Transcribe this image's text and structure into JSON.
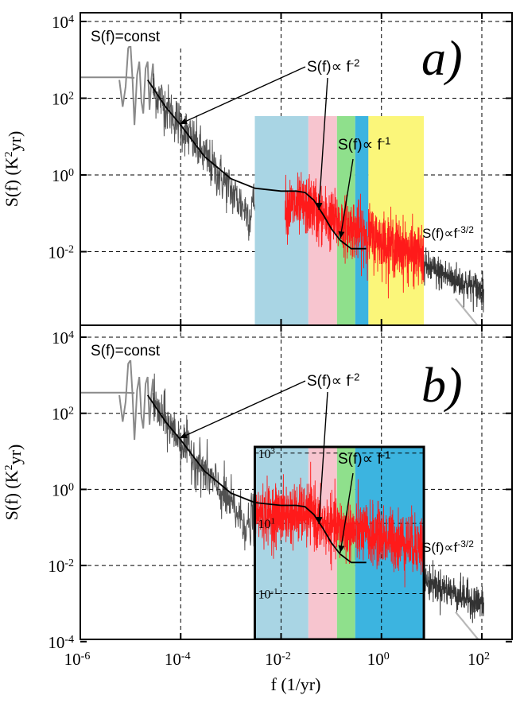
{
  "figure": {
    "x_title": "f (1/yr)",
    "y_title_main": "S(f) (K",
    "y_title_sup": "2",
    "y_title_tail": "yr)"
  },
  "colors": {
    "band_lightblue": "#a9d5e4",
    "band_pink": "#f7c5cf",
    "band_green": "#8fe08c",
    "band_blue": "#3cb4e0",
    "band_yellow": "#fbf67a",
    "raw_gray": "#8a8a8a",
    "raw_dark": "#333333",
    "instrumental_red": "#ff1a1a",
    "model_black": "#000000",
    "tail_gray": "#b8b8b8"
  },
  "chart_data": [
    {
      "panel": "a)",
      "type": "line",
      "x_scale": "log",
      "y_scale": "log",
      "xlim": [
        1e-06,
        400
      ],
      "ylim": [
        8e-05,
        10000
      ],
      "x_ticks": [
        {
          "base": "10",
          "exp": "-6"
        },
        {
          "base": "10",
          "exp": "-4"
        },
        {
          "base": "10",
          "exp": "-2"
        },
        {
          "base": "10",
          "exp": "0"
        },
        {
          "base": "10",
          "exp": "2"
        }
      ],
      "y_ticks": [
        {
          "base": "10",
          "exp": "4",
          "value": 10000
        },
        {
          "base": "10",
          "exp": "2",
          "value": 100
        },
        {
          "base": "10",
          "exp": "0",
          "value": 1
        },
        {
          "base": "10",
          "exp": "-2",
          "value": 0.01
        }
      ],
      "grid": true,
      "bands": [
        {
          "name": "light-blue",
          "x_from": 0.003,
          "x_to": 0.035,
          "y_top": 30
        },
        {
          "name": "pink",
          "x_from": 0.035,
          "x_to": 0.13,
          "y_top": 30
        },
        {
          "name": "green",
          "x_from": 0.13,
          "x_to": 0.3,
          "y_top": 30
        },
        {
          "name": "blue",
          "x_from": 0.3,
          "x_to": 0.55,
          "y_top": 30
        },
        {
          "name": "yellow",
          "x_from": 0.55,
          "x_to": 7,
          "y_top": 30
        }
      ],
      "model_curve": {
        "name": "S(f) fit",
        "x": [
          2.2e-05,
          5e-05,
          0.0001,
          0.0003,
          0.001,
          0.003,
          0.01,
          0.02,
          0.03,
          0.045,
          0.07,
          0.1,
          0.15,
          0.25,
          0.4,
          0.5
        ],
        "y": [
          300,
          60,
          20,
          3,
          0.8,
          0.45,
          0.38,
          0.38,
          0.35,
          0.22,
          0.09,
          0.04,
          0.02,
          0.012,
          0.012,
          0.012
        ]
      },
      "annotations": [
        {
          "id": "const",
          "main": "S(f)=const"
        },
        {
          "id": "f-2",
          "main": "S(f)∝ f",
          "sup": "-2"
        },
        {
          "id": "f-1",
          "main": "S(f)∝ f",
          "sup": "-1"
        },
        {
          "id": "f-3/2",
          "main": "S(f)∝f",
          "sup": "-3/2"
        }
      ]
    },
    {
      "panel": "b)",
      "type": "line",
      "x_scale": "log",
      "y_scale": "log",
      "xlim": [
        1e-06,
        400
      ],
      "ylim": [
        5e-05,
        10000
      ],
      "x_ticks": [
        {
          "base": "10",
          "exp": "-6"
        },
        {
          "base": "10",
          "exp": "-4"
        },
        {
          "base": "10",
          "exp": "-2"
        },
        {
          "base": "10",
          "exp": "0"
        },
        {
          "base": "10",
          "exp": "2"
        }
      ],
      "y_ticks": [
        {
          "base": "10",
          "exp": "4",
          "value": 10000
        },
        {
          "base": "10",
          "exp": "2",
          "value": 100
        },
        {
          "base": "10",
          "exp": "0",
          "value": 1
        },
        {
          "base": "10",
          "exp": "-2",
          "value": 0.01
        },
        {
          "base": "10",
          "exp": "-4",
          "value": 0.0001
        }
      ],
      "grid": true,
      "inset": {
        "y_scale": "log",
        "ylim": [
          0.005,
          1500
        ],
        "y_ticks": [
          {
            "base": "10",
            "exp": "3",
            "value": 1000
          },
          {
            "base": "10",
            "exp": "1",
            "value": 10
          },
          {
            "base": "10",
            "exp": "-1",
            "value": 0.1
          }
        ],
        "bands": [
          {
            "name": "light-blue",
            "x_from": 0.003,
            "x_to": 0.035
          },
          {
            "name": "pink",
            "x_from": 0.035,
            "x_to": 0.13
          },
          {
            "name": "green",
            "x_from": 0.13,
            "x_to": 0.3
          },
          {
            "name": "blue",
            "x_from": 0.3,
            "x_to": 7
          }
        ]
      },
      "model_curve": {
        "name": "S(f) fit",
        "x": [
          2.2e-05,
          5e-05,
          0.0001,
          0.0003,
          0.001,
          0.003,
          0.01,
          0.02,
          0.03,
          0.045,
          0.07,
          0.1,
          0.15,
          0.25,
          0.4,
          0.5
        ],
        "y": [
          300,
          60,
          20,
          3,
          0.8,
          0.45,
          0.38,
          0.38,
          0.35,
          0.22,
          0.09,
          0.04,
          0.02,
          0.012,
          0.012,
          0.012
        ]
      },
      "annotations": [
        {
          "id": "const",
          "main": "S(f)=const"
        },
        {
          "id": "f-2",
          "main": "S(f)∝ f",
          "sup": "-2"
        },
        {
          "id": "f-1",
          "main": "S(f)∝ f",
          "sup": "-1"
        },
        {
          "id": "f-3/2",
          "main": "S(f)∝f",
          "sup": "-3/2"
        }
      ]
    }
  ]
}
